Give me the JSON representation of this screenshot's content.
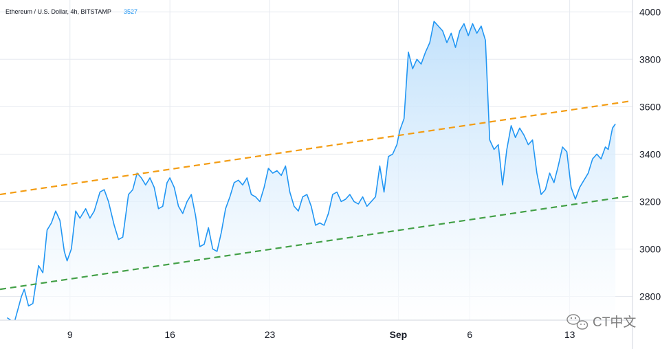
{
  "legend": {
    "symbol": "Ethereum / U.S. Dollar, 4h, BITSTAMP",
    "price": "3527"
  },
  "watermark": {
    "text": "CT中文",
    "icon": "wechat-logo-icon"
  },
  "colors": {
    "line": "#2196f3",
    "area_top": "#bbdefb",
    "area_bottom": "#ffffff",
    "upper_trend": "#f39c12",
    "lower_trend": "#43a047",
    "grid": "#e6e9ef"
  },
  "chart_data": {
    "type": "area",
    "title": "Ethereum / U.S. Dollar, 4h, BITSTAMP",
    "ylim": [
      2700,
      4050
    ],
    "xlim": [
      0,
      44.3
    ],
    "grid": true,
    "y_ticks": [
      2800,
      3000,
      3200,
      3400,
      3600,
      3800,
      4000
    ],
    "x_ticks": [
      {
        "label": "9",
        "x": 4.9,
        "bold": false
      },
      {
        "label": "16",
        "x": 11.9,
        "bold": false
      },
      {
        "label": "23",
        "x": 18.9,
        "bold": false
      },
      {
        "label": "Sep",
        "x": 27.9,
        "bold": true
      },
      {
        "label": "6",
        "x": 32.9,
        "bold": false
      },
      {
        "label": "13",
        "x": 39.9,
        "bold": false
      }
    ],
    "series": [
      {
        "values": [
          [
            0.5,
            2710
          ],
          [
            1.0,
            2690
          ],
          [
            1.5,
            2800
          ],
          [
            1.7,
            2830
          ],
          [
            2.0,
            2760
          ],
          [
            2.3,
            2770
          ],
          [
            2.7,
            2930
          ],
          [
            3.0,
            2900
          ],
          [
            3.3,
            3080
          ],
          [
            3.6,
            3110
          ],
          [
            3.9,
            3160
          ],
          [
            4.2,
            3120
          ],
          [
            4.5,
            2990
          ],
          [
            4.7,
            2950
          ],
          [
            5.0,
            3000
          ],
          [
            5.3,
            3160
          ],
          [
            5.6,
            3130
          ],
          [
            6.0,
            3170
          ],
          [
            6.3,
            3130
          ],
          [
            6.6,
            3160
          ],
          [
            7.0,
            3240
          ],
          [
            7.3,
            3250
          ],
          [
            7.6,
            3200
          ],
          [
            8.0,
            3100
          ],
          [
            8.3,
            3040
          ],
          [
            8.6,
            3050
          ],
          [
            9.0,
            3230
          ],
          [
            9.3,
            3250
          ],
          [
            9.6,
            3320
          ],
          [
            9.9,
            3300
          ],
          [
            10.2,
            3270
          ],
          [
            10.5,
            3300
          ],
          [
            10.8,
            3260
          ],
          [
            11.1,
            3170
          ],
          [
            11.4,
            3180
          ],
          [
            11.7,
            3280
          ],
          [
            11.9,
            3300
          ],
          [
            12.2,
            3260
          ],
          [
            12.5,
            3180
          ],
          [
            12.8,
            3150
          ],
          [
            13.1,
            3200
          ],
          [
            13.4,
            3230
          ],
          [
            13.7,
            3140
          ],
          [
            14.0,
            3010
          ],
          [
            14.3,
            3020
          ],
          [
            14.6,
            3090
          ],
          [
            14.9,
            3000
          ],
          [
            15.2,
            2990
          ],
          [
            15.5,
            3070
          ],
          [
            15.8,
            3170
          ],
          [
            16.1,
            3220
          ],
          [
            16.4,
            3280
          ],
          [
            16.7,
            3290
          ],
          [
            17.0,
            3270
          ],
          [
            17.3,
            3300
          ],
          [
            17.6,
            3230
          ],
          [
            17.9,
            3220
          ],
          [
            18.2,
            3200
          ],
          [
            18.5,
            3260
          ],
          [
            18.8,
            3340
          ],
          [
            19.1,
            3320
          ],
          [
            19.4,
            3330
          ],
          [
            19.7,
            3310
          ],
          [
            20.0,
            3350
          ],
          [
            20.3,
            3240
          ],
          [
            20.6,
            3180
          ],
          [
            20.9,
            3160
          ],
          [
            21.2,
            3220
          ],
          [
            21.5,
            3230
          ],
          [
            21.8,
            3180
          ],
          [
            22.1,
            3100
          ],
          [
            22.4,
            3110
          ],
          [
            22.7,
            3100
          ],
          [
            23.0,
            3150
          ],
          [
            23.3,
            3230
          ],
          [
            23.6,
            3240
          ],
          [
            23.9,
            3200
          ],
          [
            24.2,
            3210
          ],
          [
            24.5,
            3230
          ],
          [
            24.8,
            3200
          ],
          [
            25.1,
            3190
          ],
          [
            25.4,
            3220
          ],
          [
            25.7,
            3180
          ],
          [
            26.0,
            3200
          ],
          [
            26.3,
            3220
          ],
          [
            26.6,
            3350
          ],
          [
            26.9,
            3240
          ],
          [
            27.2,
            3390
          ],
          [
            27.5,
            3400
          ],
          [
            27.8,
            3440
          ],
          [
            28.0,
            3500
          ],
          [
            28.3,
            3550
          ],
          [
            28.6,
            3830
          ],
          [
            28.9,
            3760
          ],
          [
            29.2,
            3800
          ],
          [
            29.5,
            3780
          ],
          [
            29.8,
            3830
          ],
          [
            30.1,
            3870
          ],
          [
            30.4,
            3960
          ],
          [
            30.7,
            3940
          ],
          [
            31.0,
            3920
          ],
          [
            31.3,
            3870
          ],
          [
            31.6,
            3910
          ],
          [
            31.9,
            3850
          ],
          [
            32.2,
            3920
          ],
          [
            32.5,
            3950
          ],
          [
            32.8,
            3900
          ],
          [
            33.1,
            3950
          ],
          [
            33.4,
            3910
          ],
          [
            33.7,
            3940
          ],
          [
            34.0,
            3880
          ],
          [
            34.3,
            3460
          ],
          [
            34.6,
            3420
          ],
          [
            34.9,
            3440
          ],
          [
            35.2,
            3270
          ],
          [
            35.5,
            3420
          ],
          [
            35.8,
            3520
          ],
          [
            36.1,
            3470
          ],
          [
            36.4,
            3510
          ],
          [
            36.7,
            3480
          ],
          [
            37.0,
            3440
          ],
          [
            37.3,
            3460
          ],
          [
            37.6,
            3320
          ],
          [
            37.9,
            3230
          ],
          [
            38.2,
            3250
          ],
          [
            38.5,
            3320
          ],
          [
            38.8,
            3280
          ],
          [
            39.1,
            3350
          ],
          [
            39.4,
            3430
          ],
          [
            39.7,
            3410
          ],
          [
            40.0,
            3260
          ],
          [
            40.3,
            3210
          ],
          [
            40.6,
            3260
          ],
          [
            40.9,
            3290
          ],
          [
            41.2,
            3320
          ],
          [
            41.5,
            3380
          ],
          [
            41.8,
            3400
          ],
          [
            42.1,
            3380
          ],
          [
            42.4,
            3430
          ],
          [
            42.6,
            3420
          ],
          [
            42.9,
            3510
          ],
          [
            43.1,
            3527
          ]
        ]
      }
    ],
    "annotations": [
      {
        "type": "trendline",
        "name": "upper",
        "from": [
          0.0,
          3230
        ],
        "to": [
          44.3,
          3625
        ],
        "style": "dashed",
        "color": "#f39c12"
      },
      {
        "type": "trendline",
        "name": "lower",
        "from": [
          0.0,
          2830
        ],
        "to": [
          44.3,
          3225
        ],
        "style": "dashed",
        "color": "#43a047"
      }
    ]
  }
}
